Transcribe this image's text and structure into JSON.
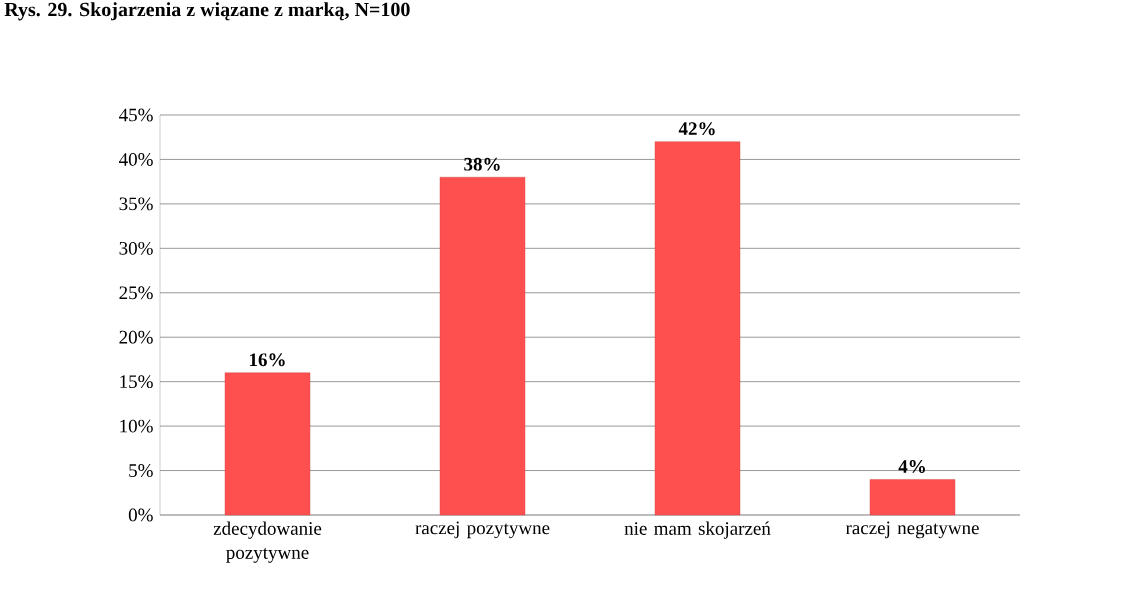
{
  "chart_data": {
    "type": "bar",
    "title": "Rys. 29. Skojarzenia z wiązane z marką, N=100",
    "categories": [
      "zdecydowanie pozytywne",
      "raczej pozytywne",
      "nie mam skojarzeń",
      "raczej negatywne"
    ],
    "values": [
      16,
      38,
      42,
      4
    ],
    "value_labels": [
      "16%",
      "38%",
      "42%",
      "4%"
    ],
    "color": "#ff5050",
    "ylim": [
      0,
      45
    ],
    "yticks": [
      {
        "value": 0,
        "label": "0%"
      },
      {
        "value": 5,
        "label": "5%"
      },
      {
        "value": 10,
        "label": "10%"
      },
      {
        "value": 15,
        "label": "15%"
      },
      {
        "value": 20,
        "label": "20%"
      },
      {
        "value": 25,
        "label": "25%"
      },
      {
        "value": 30,
        "label": "30%"
      },
      {
        "value": 35,
        "label": "35%"
      },
      {
        "value": 40,
        "label": "40%"
      },
      {
        "value": 45,
        "label": "45%"
      }
    ],
    "grid": "y"
  }
}
